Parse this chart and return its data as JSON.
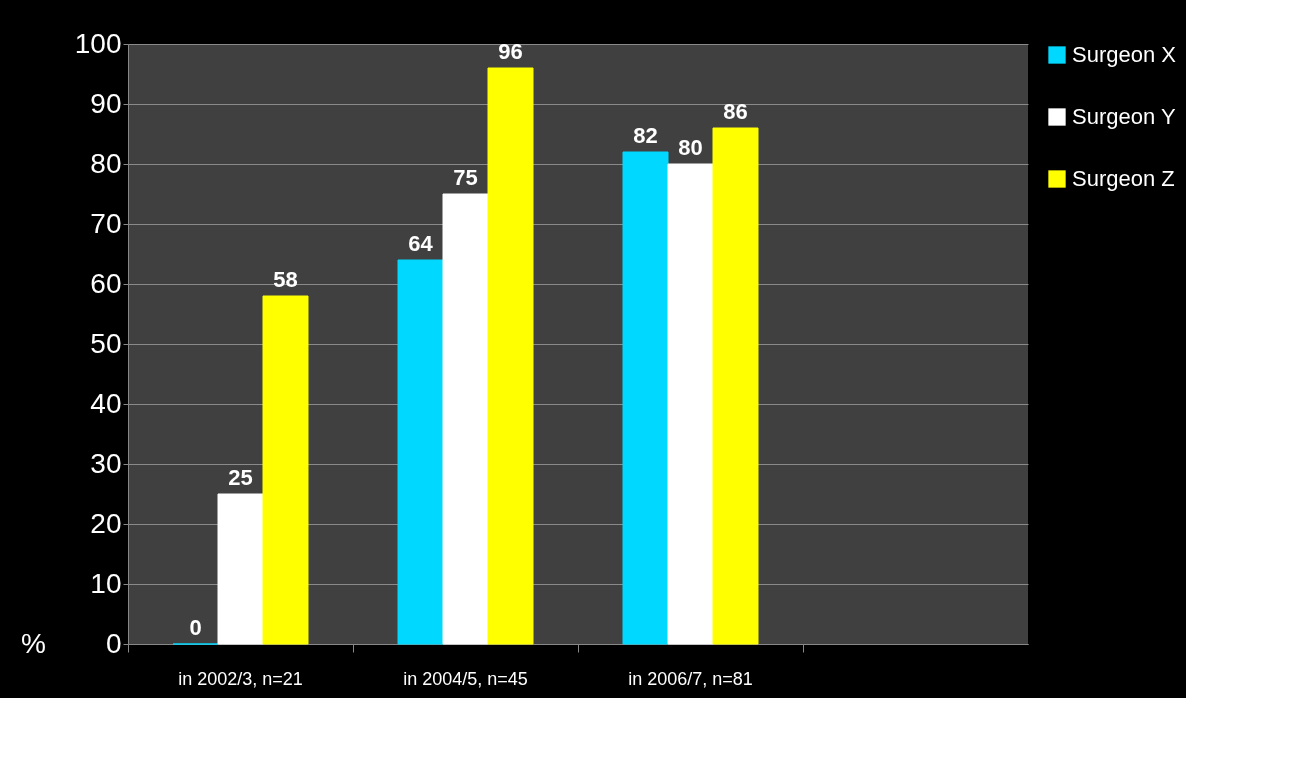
{
  "chart_data": {
    "type": "bar",
    "categories": [
      "in 2002/3, n=21",
      "in 2004/5, n=45",
      "in 2006/7, n=81",
      null
    ],
    "series": [
      {
        "name": "Surgeon X",
        "color": "#00d8ff",
        "values": [
          0,
          64,
          82,
          null
        ]
      },
      {
        "name": "Surgeon Y",
        "color": "#ffffff",
        "values": [
          25,
          75,
          80,
          null
        ]
      },
      {
        "name": "Surgeon Z",
        "color": "#ffff00",
        "values": [
          58,
          96,
          86,
          null
        ]
      }
    ],
    "ylabel": "%",
    "ylim": [
      0,
      100
    ],
    "yticks": [
      0,
      10,
      20,
      30,
      40,
      50,
      60,
      70,
      80,
      90,
      100
    ],
    "grid": "y",
    "legend": "right",
    "data_labels": true
  }
}
